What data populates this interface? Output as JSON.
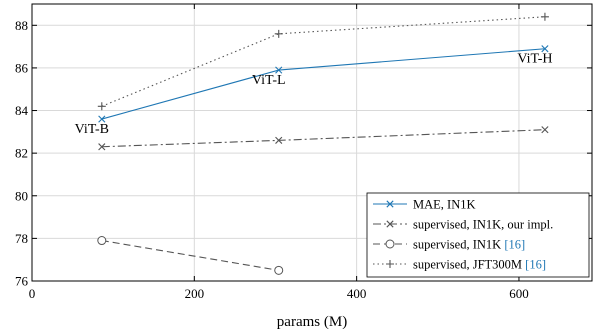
{
  "chart_data": {
    "type": "line",
    "xlabel": "params (M)",
    "ylabel": "",
    "xlim": [
      0,
      690
    ],
    "ylim": [
      76,
      89
    ],
    "x_ticks": [
      0,
      200,
      400,
      600
    ],
    "y_ticks": [
      76,
      78,
      80,
      82,
      84,
      86,
      88
    ],
    "grid": true,
    "legend_position": "bottom-right",
    "series": [
      {
        "name": "MAE, IN1K",
        "color": "#1f77b4",
        "dash": "solid",
        "marker": "x",
        "points": [
          {
            "x": 86,
            "y": 83.6
          },
          {
            "x": 304,
            "y": 85.9
          },
          {
            "x": 632,
            "y": 86.9
          }
        ]
      },
      {
        "name": "supervised, IN1K, our impl.",
        "color": "#555555",
        "dash": "dashdot",
        "marker": "x",
        "points": [
          {
            "x": 86,
            "y": 82.3
          },
          {
            "x": 304,
            "y": 82.6
          },
          {
            "x": 632,
            "y": 83.1
          }
        ]
      },
      {
        "name": "supervised, IN1K [16]",
        "color": "#555555",
        "dash": "dashed",
        "marker": "circle",
        "points": [
          {
            "x": 86,
            "y": 77.9
          },
          {
            "x": 304,
            "y": 76.5
          }
        ]
      },
      {
        "name": "supervised, JFT300M [16]",
        "color": "#555555",
        "dash": "dotted",
        "marker": "plus",
        "points": [
          {
            "x": 86,
            "y": 84.2
          },
          {
            "x": 304,
            "y": 87.6
          },
          {
            "x": 632,
            "y": 88.4
          }
        ]
      }
    ],
    "annotations": [
      {
        "text": "ViT-B",
        "x": 86,
        "y": 83.6,
        "anchor": "below-left"
      },
      {
        "text": "ViT-L",
        "x": 304,
        "y": 85.9,
        "anchor": "below-left"
      },
      {
        "text": "ViT-H",
        "x": 632,
        "y": 86.9,
        "anchor": "below-left"
      }
    ],
    "reference_color": "#1f77b4"
  }
}
